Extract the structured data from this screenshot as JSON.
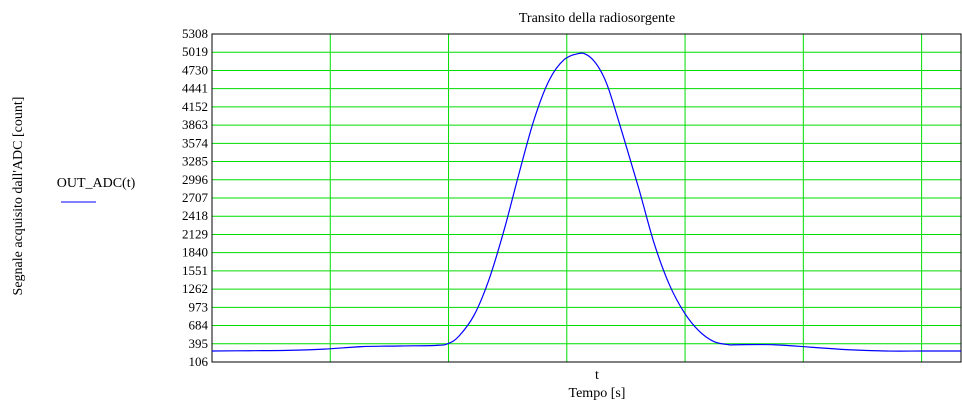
{
  "chart_data": {
    "type": "line",
    "title": "Transito della radiosorgente",
    "xlabel": "Tempo [s]",
    "x_tick_marker": "t",
    "ylabel": "Segnale acquisito dall'ADC [count]",
    "ylim": [
      106,
      5308
    ],
    "yticks": [
      106,
      395,
      684,
      973,
      1262,
      1551,
      1840,
      2129,
      2418,
      2707,
      2996,
      3285,
      3574,
      3863,
      4152,
      4441,
      4730,
      5019,
      5308
    ],
    "xlim": [
      0,
      1
    ],
    "x_grid": [
      0.1579,
      0.3158,
      0.4737,
      0.6316,
      0.7895,
      0.9474
    ],
    "grid": true,
    "grid_color": "#00dd00",
    "legend_position": "left",
    "series": [
      {
        "name": "OUT_ADC(t)",
        "color": "#0000ff",
        "x": [
          0,
          0.05,
          0.1,
          0.15,
          0.2,
          0.25,
          0.3,
          0.3158,
          0.33,
          0.35,
          0.37,
          0.39,
          0.41,
          0.43,
          0.45,
          0.47,
          0.49,
          0.5,
          0.51,
          0.52,
          0.53,
          0.55,
          0.57,
          0.59,
          0.61,
          0.63,
          0.65,
          0.67,
          0.69,
          0.7,
          0.75,
          0.8,
          0.85,
          0.9,
          0.95,
          1.0
        ],
        "values": [
          280,
          285,
          290,
          310,
          350,
          360,
          370,
          400,
          520,
          850,
          1420,
          2200,
          3100,
          3950,
          4570,
          4900,
          5000,
          4980,
          4880,
          4700,
          4420,
          3650,
          2850,
          2000,
          1350,
          900,
          600,
          430,
          380,
          380,
          380,
          340,
          300,
          280,
          280,
          280
        ]
      }
    ]
  }
}
